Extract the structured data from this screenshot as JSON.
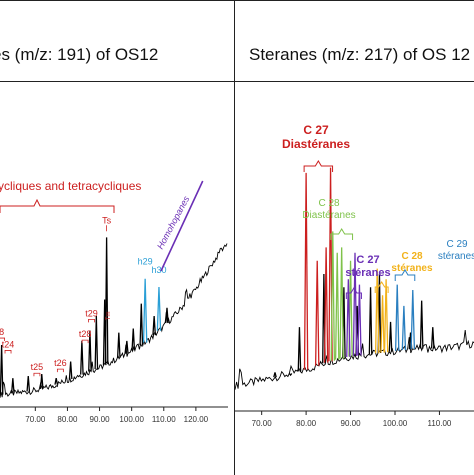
{
  "chart_data": [
    {
      "type": "line",
      "title": "es (m/z: 191) of OS12",
      "x_ticks": [
        "70.00",
        "80.00",
        "90.00",
        "100.00",
        "110.00",
        "120.00"
      ],
      "xlim": [
        59,
        130
      ],
      "baseline": [
        [
          59,
          0.04
        ],
        [
          65,
          0.05
        ],
        [
          70,
          0.06
        ],
        [
          75,
          0.08
        ],
        [
          80,
          0.11
        ],
        [
          85,
          0.14
        ],
        [
          90,
          0.17
        ],
        [
          95,
          0.21
        ],
        [
          100,
          0.25
        ],
        [
          105,
          0.3
        ],
        [
          110,
          0.37
        ],
        [
          115,
          0.45
        ],
        [
          120,
          0.55
        ],
        [
          125,
          0.67
        ],
        [
          128,
          0.74
        ],
        [
          129.5,
          0.77
        ]
      ],
      "peaks": [
        {
          "x": 59.5,
          "y": 0.28
        },
        {
          "x": 63.0,
          "y": 0.12
        },
        {
          "x": 67.8,
          "y": 0.13
        },
        {
          "x": 72.0,
          "y": 0.14
        },
        {
          "x": 76.5,
          "y": 0.12
        },
        {
          "x": 81.0,
          "y": 0.2
        },
        {
          "x": 84.5,
          "y": 0.3
        },
        {
          "x": 87.0,
          "y": 0.35
        },
        {
          "x": 89.0,
          "y": 0.42
        },
        {
          "x": 91.6,
          "y": 0.5
        },
        {
          "x": 92.2,
          "y": 0.8
        },
        {
          "x": 96.0,
          "y": 0.34
        },
        {
          "x": 98.5,
          "y": 0.3
        },
        {
          "x": 100.5,
          "y": 0.36
        },
        {
          "x": 103.0,
          "y": 0.48
        },
        {
          "x": 107.0,
          "y": 0.42
        },
        {
          "x": 111.0,
          "y": 0.46
        }
      ],
      "series": [
        {
          "x": 104.2,
          "y": 0.6,
          "color": "#2a9fd6"
        },
        {
          "x": 108.5,
          "y": 0.56,
          "color": "#2a9fd6"
        }
      ],
      "peak_labels": [
        {
          "label": "8",
          "x": 59.5,
          "y": 0.28
        },
        {
          "label": "t24",
          "x": 61.5,
          "y": 0.22
        },
        {
          "label": "t25",
          "x": 70.5,
          "y": 0.11
        },
        {
          "label": "t26",
          "x": 77.8,
          "y": 0.13
        },
        {
          "label": "t28",
          "x": 85.5,
          "y": 0.27
        },
        {
          "label": "t29",
          "x": 87.5,
          "y": 0.37
        },
        {
          "label": "Ts",
          "x": 92.2,
          "y": 0.82
        },
        {
          "label": "Tm",
          "x": 93.2,
          "y": 0.4
        },
        {
          "label": "h29",
          "x": 104.2,
          "y": 0.62
        },
        {
          "label": "h30",
          "x": 108.5,
          "y": 0.58
        }
      ],
      "group_labels": [
        {
          "label": "ycliques and tetracycliques",
          "from": 59,
          "to": 94.5
        },
        {
          "label": "Homohopanes",
          "from": 111,
          "to": 124
        }
      ],
      "colors": {
        "trace": "#000000",
        "tricyclic": "#cc1f1f",
        "hopane": "#2a9fd6",
        "homohopane": "#6a2fb5"
      }
    },
    {
      "type": "line",
      "title": "Steranes (m/z: 217) of OS 12",
      "x_ticks": [
        "70.00",
        "80.00",
        "90.00",
        "100.00",
        "110.00"
      ],
      "xlim": [
        64,
        118
      ],
      "baseline": [
        [
          64,
          0.08
        ],
        [
          70,
          0.1
        ],
        [
          75,
          0.12
        ],
        [
          80,
          0.14
        ],
        [
          85,
          0.17
        ],
        [
          90,
          0.19
        ],
        [
          95,
          0.2
        ],
        [
          100,
          0.21
        ],
        [
          105,
          0.22
        ],
        [
          110,
          0.22
        ],
        [
          115,
          0.23
        ],
        [
          118,
          0.24
        ]
      ],
      "peaks": [
        {
          "x": 73.0,
          "y": 0.13
        },
        {
          "x": 76.5,
          "y": 0.12
        },
        {
          "x": 78.5,
          "y": 0.3
        },
        {
          "x": 84.0,
          "y": 0.5
        },
        {
          "x": 88.5,
          "y": 0.45
        },
        {
          "x": 91.5,
          "y": 0.38
        },
        {
          "x": 94.5,
          "y": 0.45
        },
        {
          "x": 96.5,
          "y": 0.5
        },
        {
          "x": 99.0,
          "y": 0.32
        },
        {
          "x": 103.5,
          "y": 0.28
        },
        {
          "x": 106.0,
          "y": 0.4
        },
        {
          "x": 108.5,
          "y": 0.3
        }
      ],
      "series": [
        {
          "name": "C 27 Diastéranes",
          "color": "#cc1f1f",
          "peaks": [
            [
              80.0,
              0.88
            ],
            [
              82.5,
              0.55
            ],
            [
              84.5,
              0.6
            ],
            [
              85.5,
              0.9
            ]
          ]
        },
        {
          "name": "C 28 Diastéranes",
          "color": "#7fc24a",
          "peaks": [
            [
              86.0,
              0.66
            ],
            [
              87.0,
              0.58
            ],
            [
              88.0,
              0.6
            ],
            [
              90.0,
              0.55
            ]
          ]
        },
        {
          "name": "C 27 stéranes",
          "color": "#6a2fb5",
          "peaks": [
            [
              89.5,
              0.48
            ],
            [
              91.0,
              0.58
            ],
            [
              92.0,
              0.46
            ]
          ]
        },
        {
          "name": "C 28 stéranes",
          "color": "#f2b21a",
          "peaks": [
            [
              96.0,
              0.52
            ],
            [
              97.2,
              0.42
            ],
            [
              98.0,
              0.48
            ]
          ]
        },
        {
          "name": "C 29 stéranes",
          "color": "#2a7fc0",
          "peaks": [
            [
              100.5,
              0.46
            ],
            [
              102.0,
              0.38
            ],
            [
              104.0,
              0.44
            ]
          ]
        }
      ],
      "series_labels": [
        {
          "line1": "C 27",
          "line2": "Diastéranes"
        },
        {
          "line1": "C 28",
          "line2": "Diastéranes"
        },
        {
          "line1": "C 27",
          "line2": "stéranes"
        },
        {
          "line1": "C 28",
          "line2": "stéranes"
        },
        {
          "line1": "C 29",
          "line2": "stéranes"
        }
      ]
    }
  ]
}
